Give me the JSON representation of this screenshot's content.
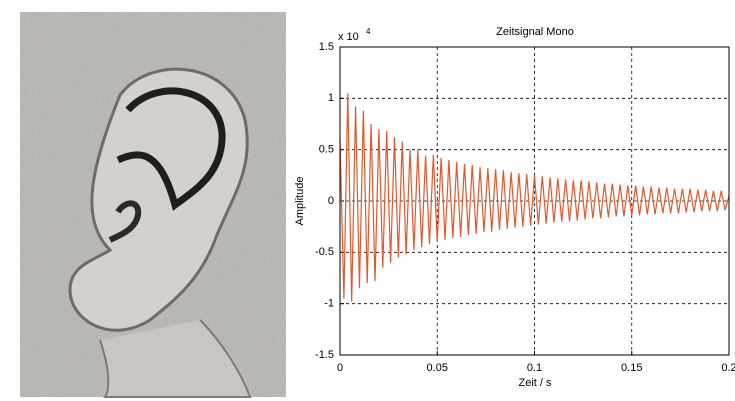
{
  "chart_data": {
    "type": "line",
    "title": "Zeitsignal Mono",
    "xlabel": "Zeit / s",
    "ylabel": "Amplitude",
    "y_multiplier": {
      "base": "x 10",
      "exponent": "4"
    },
    "xlim": [
      0,
      0.2
    ],
    "xticks": [
      0,
      0.05,
      0.1,
      0.15,
      0.2
    ],
    "ylim": [
      -1.5,
      1.5
    ],
    "yticks": [
      -1.5,
      -1,
      -0.5,
      0,
      0.5,
      1,
      1.5
    ],
    "grid": true,
    "x": [
      0,
      0.002,
      0.004,
      0.006,
      0.008,
      0.01,
      0.012,
      0.014,
      0.016,
      0.018,
      0.02,
      0.022,
      0.024,
      0.026,
      0.028,
      0.03,
      0.032,
      0.034,
      0.036,
      0.038,
      0.04,
      0.042,
      0.044,
      0.046,
      0.048,
      0.05,
      0.052,
      0.054,
      0.056,
      0.058,
      0.06,
      0.062,
      0.064,
      0.066,
      0.068,
      0.07,
      0.072,
      0.074,
      0.076,
      0.078,
      0.08,
      0.082,
      0.084,
      0.086,
      0.088,
      0.09,
      0.092,
      0.094,
      0.096,
      0.098,
      0.1,
      0.102,
      0.104,
      0.106,
      0.108,
      0.11,
      0.112,
      0.114,
      0.116,
      0.118,
      0.12,
      0.122,
      0.124,
      0.126,
      0.128,
      0.13,
      0.132,
      0.134,
      0.136,
      0.138,
      0.14,
      0.142,
      0.144,
      0.146,
      0.148,
      0.15,
      0.152,
      0.154,
      0.156,
      0.158,
      0.16,
      0.162,
      0.164,
      0.166,
      0.168,
      0.17,
      0.172,
      0.174,
      0.176,
      0.178,
      0.18,
      0.182,
      0.184,
      0.186,
      0.188,
      0.19,
      0.192,
      0.194,
      0.196,
      0.198,
      0.2
    ],
    "series": [
      {
        "color": "#e4572e",
        "values": [
          0.6,
          -0.95,
          1.05,
          -0.98,
          0.92,
          -0.85,
          0.88,
          -0.8,
          0.75,
          -0.78,
          0.7,
          -0.65,
          0.68,
          -0.6,
          0.62,
          -0.55,
          0.58,
          -0.52,
          0.5,
          -0.48,
          0.5,
          -0.45,
          0.44,
          -0.42,
          0.45,
          -0.4,
          0.42,
          -0.38,
          0.4,
          -0.36,
          0.38,
          -0.35,
          0.36,
          -0.33,
          0.35,
          -0.32,
          0.33,
          -0.3,
          0.32,
          -0.3,
          0.31,
          -0.28,
          0.3,
          -0.27,
          0.28,
          -0.26,
          0.27,
          -0.25,
          0.26,
          -0.24,
          0.25,
          -0.23,
          0.24,
          -0.22,
          0.23,
          -0.21,
          0.22,
          -0.2,
          0.21,
          -0.2,
          0.2,
          -0.19,
          0.2,
          -0.18,
          0.19,
          -0.17,
          0.18,
          -0.17,
          0.17,
          -0.16,
          0.17,
          -0.15,
          0.16,
          -0.15,
          0.15,
          -0.14,
          0.15,
          -0.14,
          0.14,
          -0.13,
          0.14,
          -0.13,
          0.13,
          -0.12,
          0.13,
          -0.12,
          0.12,
          -0.12,
          0.12,
          -0.11,
          0.12,
          -0.11,
          0.11,
          -0.1,
          0.11,
          -0.1,
          0.1,
          -0.1,
          0.1,
          -0.09,
          0.05
        ]
      }
    ]
  }
}
